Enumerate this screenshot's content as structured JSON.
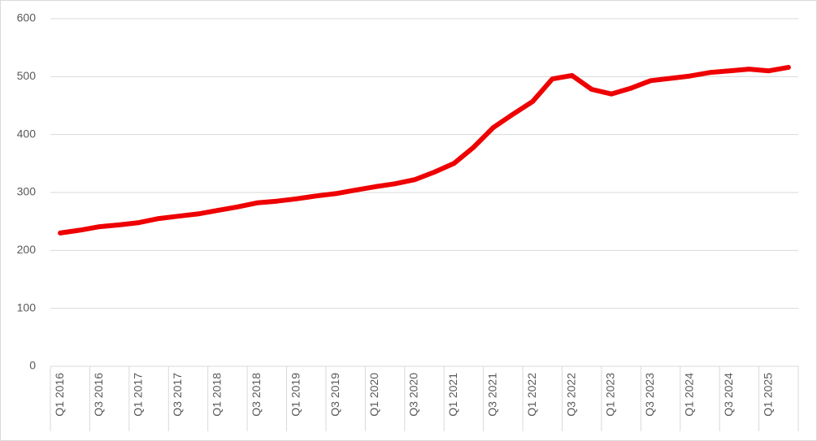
{
  "chart_data": {
    "type": "line",
    "categories": [
      "Q1 2016",
      null,
      "Q3 2016",
      null,
      "Q1 2017",
      null,
      "Q3 2017",
      null,
      "Q1 2018",
      null,
      "Q3 2018",
      null,
      "Q1 2019",
      null,
      "Q3 2019",
      null,
      "Q1 2020",
      null,
      "Q3 2020",
      null,
      "Q1 2021",
      null,
      "Q3 2021",
      null,
      "Q1 2022",
      null,
      "Q3 2022",
      null,
      "Q1 2023",
      null,
      "Q3 2023",
      null,
      "Q1 2024",
      null,
      "Q3 2024",
      null,
      "Q1 2025",
      null
    ],
    "values": [
      230,
      235,
      241,
      244,
      248,
      255,
      259,
      263,
      269,
      275,
      282,
      285,
      289,
      294,
      298,
      304,
      310,
      315,
      322,
      335,
      350,
      378,
      412,
      435,
      457,
      496,
      502,
      478,
      470,
      480,
      493,
      497,
      501,
      507,
      510,
      513,
      510,
      516
    ],
    "color": "#ee0000",
    "ylim": [
      0,
      600
    ],
    "yticks": [
      0,
      100,
      200,
      300,
      400,
      500,
      600
    ],
    "grid": true
  }
}
